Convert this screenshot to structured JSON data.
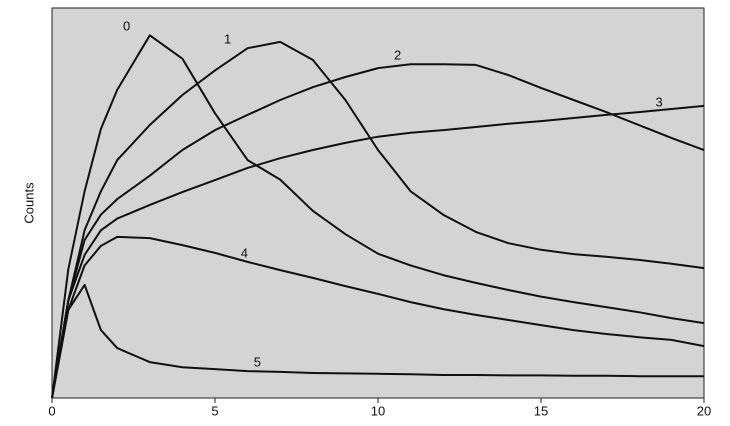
{
  "chart_data": {
    "type": "line",
    "y_label": "Counts",
    "x": [
      0,
      0.5,
      1,
      1.5,
      2,
      3,
      4,
      5,
      6,
      7,
      8,
      9,
      10,
      11,
      12,
      13,
      14,
      15,
      16,
      17,
      18,
      19,
      20
    ],
    "xlim": [
      0,
      20
    ],
    "xticks": [
      0,
      5,
      10,
      15,
      20
    ],
    "ylim": [
      0,
      100
    ],
    "background": "#d4d4d4",
    "series": [
      {
        "name": "0",
        "color": "#111111",
        "values": [
          0,
          33,
          53,
          69,
          79,
          93,
          87,
          73,
          61,
          56,
          48,
          42,
          37,
          34,
          31.5,
          29.5,
          27.7,
          26,
          24.6,
          23.3,
          22,
          20.5,
          19.2
        ]
      },
      {
        "name": "1",
        "color": "#111111",
        "values": [
          0,
          25,
          43,
          53,
          61,
          70,
          77.7,
          84,
          89.7,
          91.3,
          86.7,
          76.4,
          63.6,
          53,
          47,
          42.6,
          39.7,
          38,
          36.9,
          36.2,
          35.4,
          34.4,
          33.3
        ]
      },
      {
        "name": "2",
        "color": "#111111",
        "values": [
          0,
          25,
          40.5,
          47,
          51,
          57,
          63.6,
          68.7,
          72.6,
          76.4,
          79.7,
          82.3,
          84.6,
          85.6,
          85.6,
          85.4,
          82.8,
          79.5,
          76.4,
          73.3,
          70,
          66.7,
          63.6
        ]
      },
      {
        "name": "3",
        "color": "#111111",
        "values": [
          0,
          25,
          36.7,
          43,
          46,
          49.5,
          52.8,
          55.9,
          59,
          61.5,
          63.6,
          65.4,
          67,
          68,
          68.7,
          69.5,
          70.3,
          71,
          71.8,
          72.6,
          73.3,
          74.1,
          74.9
        ]
      },
      {
        "name": "4",
        "color": "#111111",
        "values": [
          0,
          22.6,
          34,
          39,
          41.3,
          41,
          39.2,
          37.2,
          34.9,
          32.8,
          30.8,
          28.7,
          26.7,
          24.6,
          22.8,
          21.3,
          20,
          18.7,
          17.4,
          16.4,
          15.6,
          14.9,
          13.3
        ]
      },
      {
        "name": "5",
        "color": "#111111",
        "values": [
          0,
          22.6,
          29,
          17.4,
          12.8,
          9.2,
          7.9,
          7.4,
          6.9,
          6.7,
          6.4,
          6.3,
          6.2,
          6.1,
          5.9,
          5.9,
          5.8,
          5.8,
          5.7,
          5.7,
          5.6,
          5.6,
          5.6
        ]
      }
    ]
  }
}
